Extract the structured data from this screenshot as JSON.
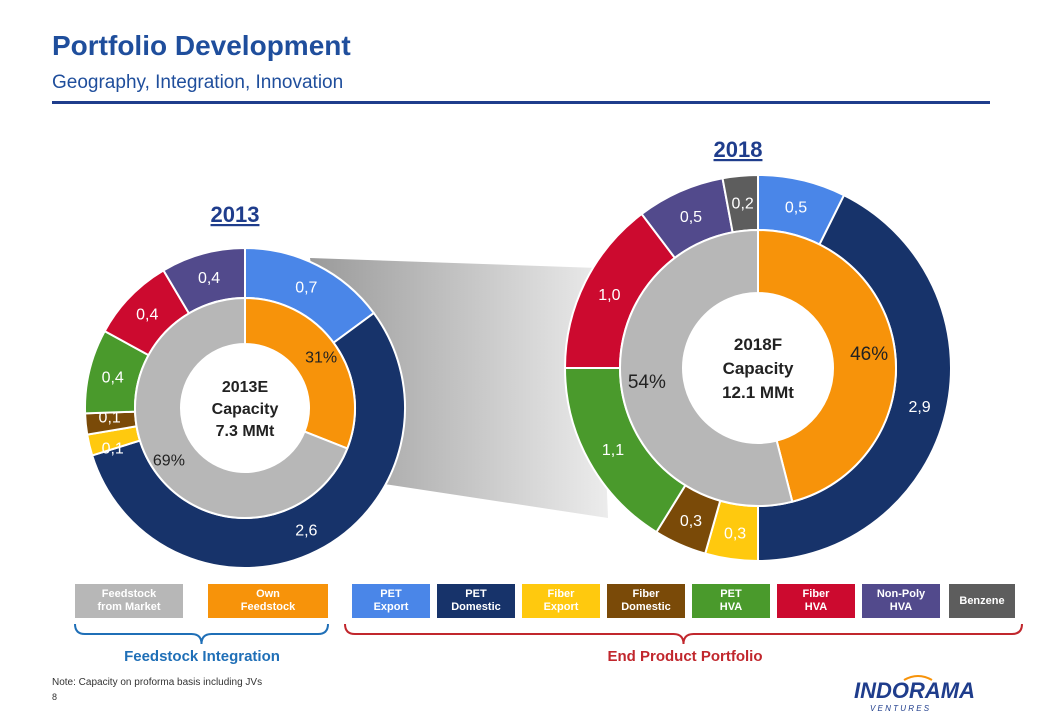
{
  "header": {
    "title": "Portfolio Development",
    "subtitle": "Geography, Integration, Innovation"
  },
  "colors": {
    "feedstock_market": "#b7b7b7",
    "own_feedstock": "#f7930a",
    "pet_export": "#4a86e8",
    "pet_domestic": "#17336a",
    "fiber_export": "#ffc90e",
    "fiber_domestic": "#7a4a08",
    "pet_hva": "#4a9a2c",
    "fiber_hva": "#cc0a2f",
    "nonpoly_hva": "#524a8c",
    "benzene": "#5d5d5d"
  },
  "chart_data": [
    {
      "type": "pie",
      "variant": "donut",
      "year_label": "2013",
      "center_text": [
        "2013E",
        "Capacity",
        "7.3 MMt"
      ],
      "inner_ring": [
        {
          "name": "Own Feedstock",
          "percent": 31,
          "label": "31%",
          "color": "#f7930a"
        },
        {
          "name": "Feedstock from Market",
          "percent": 69,
          "label": "69%",
          "color": "#b7b7b7"
        }
      ],
      "outer_ring": [
        {
          "name": "PET Export",
          "value": 0.7,
          "label": "0,7",
          "color": "#4a86e8"
        },
        {
          "name": "PET Domestic",
          "value": 2.6,
          "label": "2,6",
          "color": "#17336a"
        },
        {
          "name": "Fiber Export",
          "value": 0.1,
          "label": "0,1",
          "color": "#ffc90e"
        },
        {
          "name": "Fiber Domestic",
          "value": 0.1,
          "label": "0,1",
          "color": "#7a4a08"
        },
        {
          "name": "PET HVA",
          "value": 0.4,
          "label": "0,4",
          "color": "#4a9a2c"
        },
        {
          "name": "Fiber HVA",
          "value": 0.4,
          "label": "0,4",
          "color": "#cc0a2f"
        },
        {
          "name": "Non-Poly HVA",
          "value": 0.4,
          "label": "0,4",
          "color": "#524a8c"
        }
      ]
    },
    {
      "type": "pie",
      "variant": "donut",
      "year_label": "2018",
      "center_text": [
        "2018F",
        "Capacity",
        "12.1 MMt"
      ],
      "inner_ring": [
        {
          "name": "Own Feedstock",
          "percent": 46,
          "label": "46%",
          "color": "#f7930a"
        },
        {
          "name": "Feedstock from Market",
          "percent": 54,
          "label": "54%",
          "color": "#b7b7b7"
        }
      ],
      "outer_ring": [
        {
          "name": "PET Export",
          "value": 0.5,
          "label": "0,5",
          "color": "#4a86e8"
        },
        {
          "name": "PET Domestic",
          "value": 2.9,
          "label": "2,9",
          "color": "#17336a"
        },
        {
          "name": "Fiber Export",
          "value": 0.3,
          "label": "0,3",
          "color": "#ffc90e"
        },
        {
          "name": "Fiber Domestic",
          "value": 0.3,
          "label": "0,3",
          "color": "#7a4a08"
        },
        {
          "name": "PET HVA",
          "value": 1.1,
          "label": "1,1",
          "color": "#4a9a2c"
        },
        {
          "name": "Fiber HVA",
          "value": 1.0,
          "label": "1,0",
          "color": "#cc0a2f"
        },
        {
          "name": "Non-Poly HVA",
          "value": 0.5,
          "label": "0,5",
          "color": "#524a8c"
        },
        {
          "name": "Benzene",
          "value": 0.2,
          "label": "0,2",
          "color": "#5d5d5d"
        }
      ]
    }
  ],
  "legend": {
    "items": [
      {
        "label": "Feedstock\nfrom Market",
        "color": "#b7b7b7"
      },
      {
        "label": "Own\nFeedstock",
        "color": "#f7930a"
      },
      {
        "label": "PET\nExport",
        "color": "#4a86e8"
      },
      {
        "label": "PET\nDomestic",
        "color": "#17336a"
      },
      {
        "label": "Fiber\nExport",
        "color": "#ffc90e"
      },
      {
        "label": "Fiber\nDomestic",
        "color": "#7a4a08"
      },
      {
        "label": "PET\nHVA",
        "color": "#4a9a2c"
      },
      {
        "label": "Fiber\nHVA",
        "color": "#cc0a2f"
      },
      {
        "label": "Non-Poly\nHVA",
        "color": "#524a8c"
      },
      {
        "label": "Benzene",
        "color": "#5d5d5d"
      }
    ],
    "groups": [
      {
        "label": "Feedstock Integration",
        "color": "#1f6fb7"
      },
      {
        "label": "End Product Portfolio",
        "color": "#c1272d"
      }
    ]
  },
  "footer": {
    "note": "Note: Capacity on proforma basis including JVs",
    "page": "8",
    "logo_main": "INDORAMA",
    "logo_sub": "V E N T U R E S"
  }
}
